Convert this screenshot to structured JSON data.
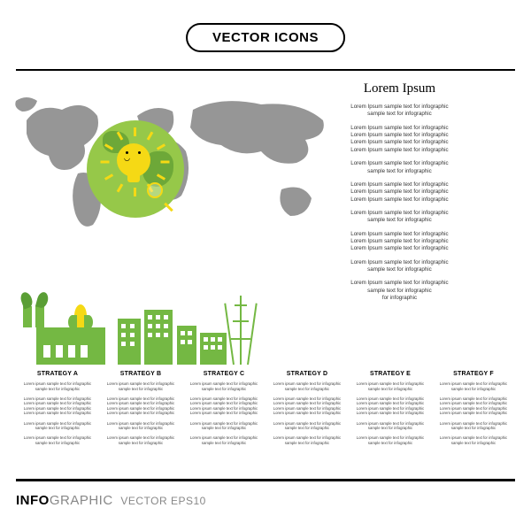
{
  "type": "infographic",
  "header": {
    "badge": "VECTOR ICONS"
  },
  "footer": {
    "title": "INFO",
    "title2": "GRAPHIC",
    "subtitle": "VECTOR EPS10"
  },
  "colors": {
    "green_primary": "#74b843",
    "green_light": "#96c849",
    "green_dark": "#5a9e35",
    "yellow": "#f5d915",
    "map_gray": "#969696",
    "text_gray": "#333333",
    "divider": "#000000",
    "background": "#ffffff"
  },
  "text_block": {
    "title": "Lorem Ipsum",
    "paragraphs": [
      {
        "lines": [
          "Lorem Ipsum sample text  for infographic",
          "sample text  for infographic"
        ]
      },
      {
        "lines": [
          "Lorem Ipsum sample text  for infographic",
          "Lorem Ipsum sample text  for infographic",
          "Lorem Ipsum sample text  for infographic",
          "Lorem Ipsum sample text  for infographic"
        ]
      },
      {
        "lines": [
          "Lorem Ipsum sample text  for infographic",
          "sample text  for infographic"
        ]
      },
      {
        "lines": [
          "Lorem Ipsum sample text  for infographic",
          "Lorem Ipsum sample text  for infographic",
          "Lorem Ipsum sample text  for infographic"
        ]
      },
      {
        "lines": [
          "Lorem Ipsum sample text  for infographic",
          "sample text  for infographic"
        ]
      },
      {
        "lines": [
          "Lorem Ipsum sample text  for infographic",
          "Lorem Ipsum sample text  for infographic",
          "Lorem Ipsum sample text  for infographic"
        ]
      },
      {
        "lines": [
          "Lorem Ipsum sample text  for infographic",
          "sample text  for infographic"
        ]
      },
      {
        "lines": [
          "Lorem Ipsum sample text  for infographic",
          "sample text  for infographic",
          "for infographic"
        ]
      }
    ]
  },
  "strategies": [
    {
      "title": "STRATEGY A"
    },
    {
      "title": "STRATEGY B"
    },
    {
      "title": "STRATEGY C"
    },
    {
      "title": "STRATEGY D"
    },
    {
      "title": "STRATEGY E"
    },
    {
      "title": "STRATEGY F"
    }
  ],
  "strategy_body_lines": [
    "Lorem ipsum sample text  for infographic",
    "sample text  for infographic",
    "",
    "Lorem ipsum sample text for infographic",
    "Lorem ipsum sample text for infographic",
    "Lorem ipsum sample text for infographic",
    "Lorem ipsum sample text for infographic",
    "",
    "Lorem ipsum sample text  for infographic",
    "sample text  for infographic",
    "",
    "Lorem ipsum sample text  for infographic",
    "sample text  for infographic"
  ],
  "illustration": {
    "elements": [
      "world-map",
      "green-globe",
      "smiling-lightbulb",
      "sun-rays",
      "magnifying-glass",
      "eco-factory",
      "corn",
      "leaves",
      "buildings",
      "radio-tower"
    ]
  }
}
